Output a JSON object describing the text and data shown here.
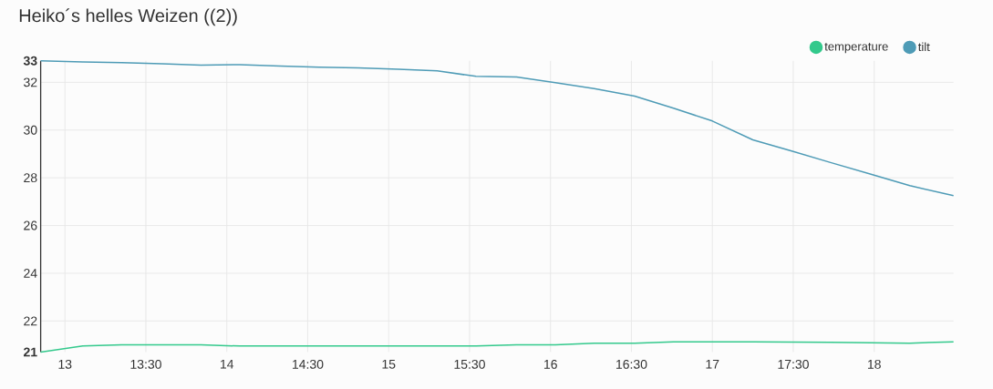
{
  "chart_data": {
    "type": "line",
    "title": "Heiko´s helles Weizen ((2))",
    "x": [
      12.85,
      13.11,
      13.35,
      13.6,
      13.84,
      14.08,
      14.33,
      14.57,
      14.81,
      15.06,
      15.3,
      15.54,
      15.79,
      16.03,
      16.27,
      16.52,
      16.76,
      17.0,
      17.25,
      17.49,
      17.73,
      17.98,
      18.22,
      18.49
    ],
    "series": [
      {
        "name": "temperature",
        "color": "#33c98c",
        "values": [
          20.7,
          20.95,
          21.0,
          21.0,
          21.0,
          20.95,
          20.95,
          20.95,
          20.95,
          20.95,
          20.95,
          20.95,
          21.0,
          21.0,
          21.07,
          21.07,
          21.13,
          21.13,
          21.13,
          21.12,
          21.11,
          21.09,
          21.07,
          21.13
        ]
      },
      {
        "name": "tilt",
        "color": "#4e9bb6",
        "values": [
          32.9,
          32.85,
          32.83,
          32.78,
          32.72,
          32.74,
          32.68,
          32.63,
          32.61,
          32.55,
          32.48,
          32.25,
          32.22,
          31.99,
          31.74,
          31.42,
          30.92,
          30.38,
          29.59,
          29.12,
          28.64,
          28.15,
          27.67,
          27.25
        ]
      }
    ],
    "xlim": [
      12.85,
      18.49
    ],
    "xticks": [
      13,
      {
        "value": 13.5,
        "label": "13:30"
      },
      14,
      {
        "value": 14.5,
        "label": "14:30"
      },
      15,
      {
        "value": 15.5,
        "label": "15:30"
      },
      16,
      {
        "value": 16.5,
        "label": "16:30"
      },
      17,
      {
        "value": 17.5,
        "label": "17:30"
      },
      18
    ],
    "ylim": [
      20.7,
      32.9
    ],
    "yticks": [
      {
        "value": 20.7,
        "label": "21"
      },
      22,
      24,
      26,
      28,
      30,
      32,
      {
        "value": 32.9,
        "label": "33"
      }
    ],
    "grid": true,
    "legend": "top right"
  }
}
